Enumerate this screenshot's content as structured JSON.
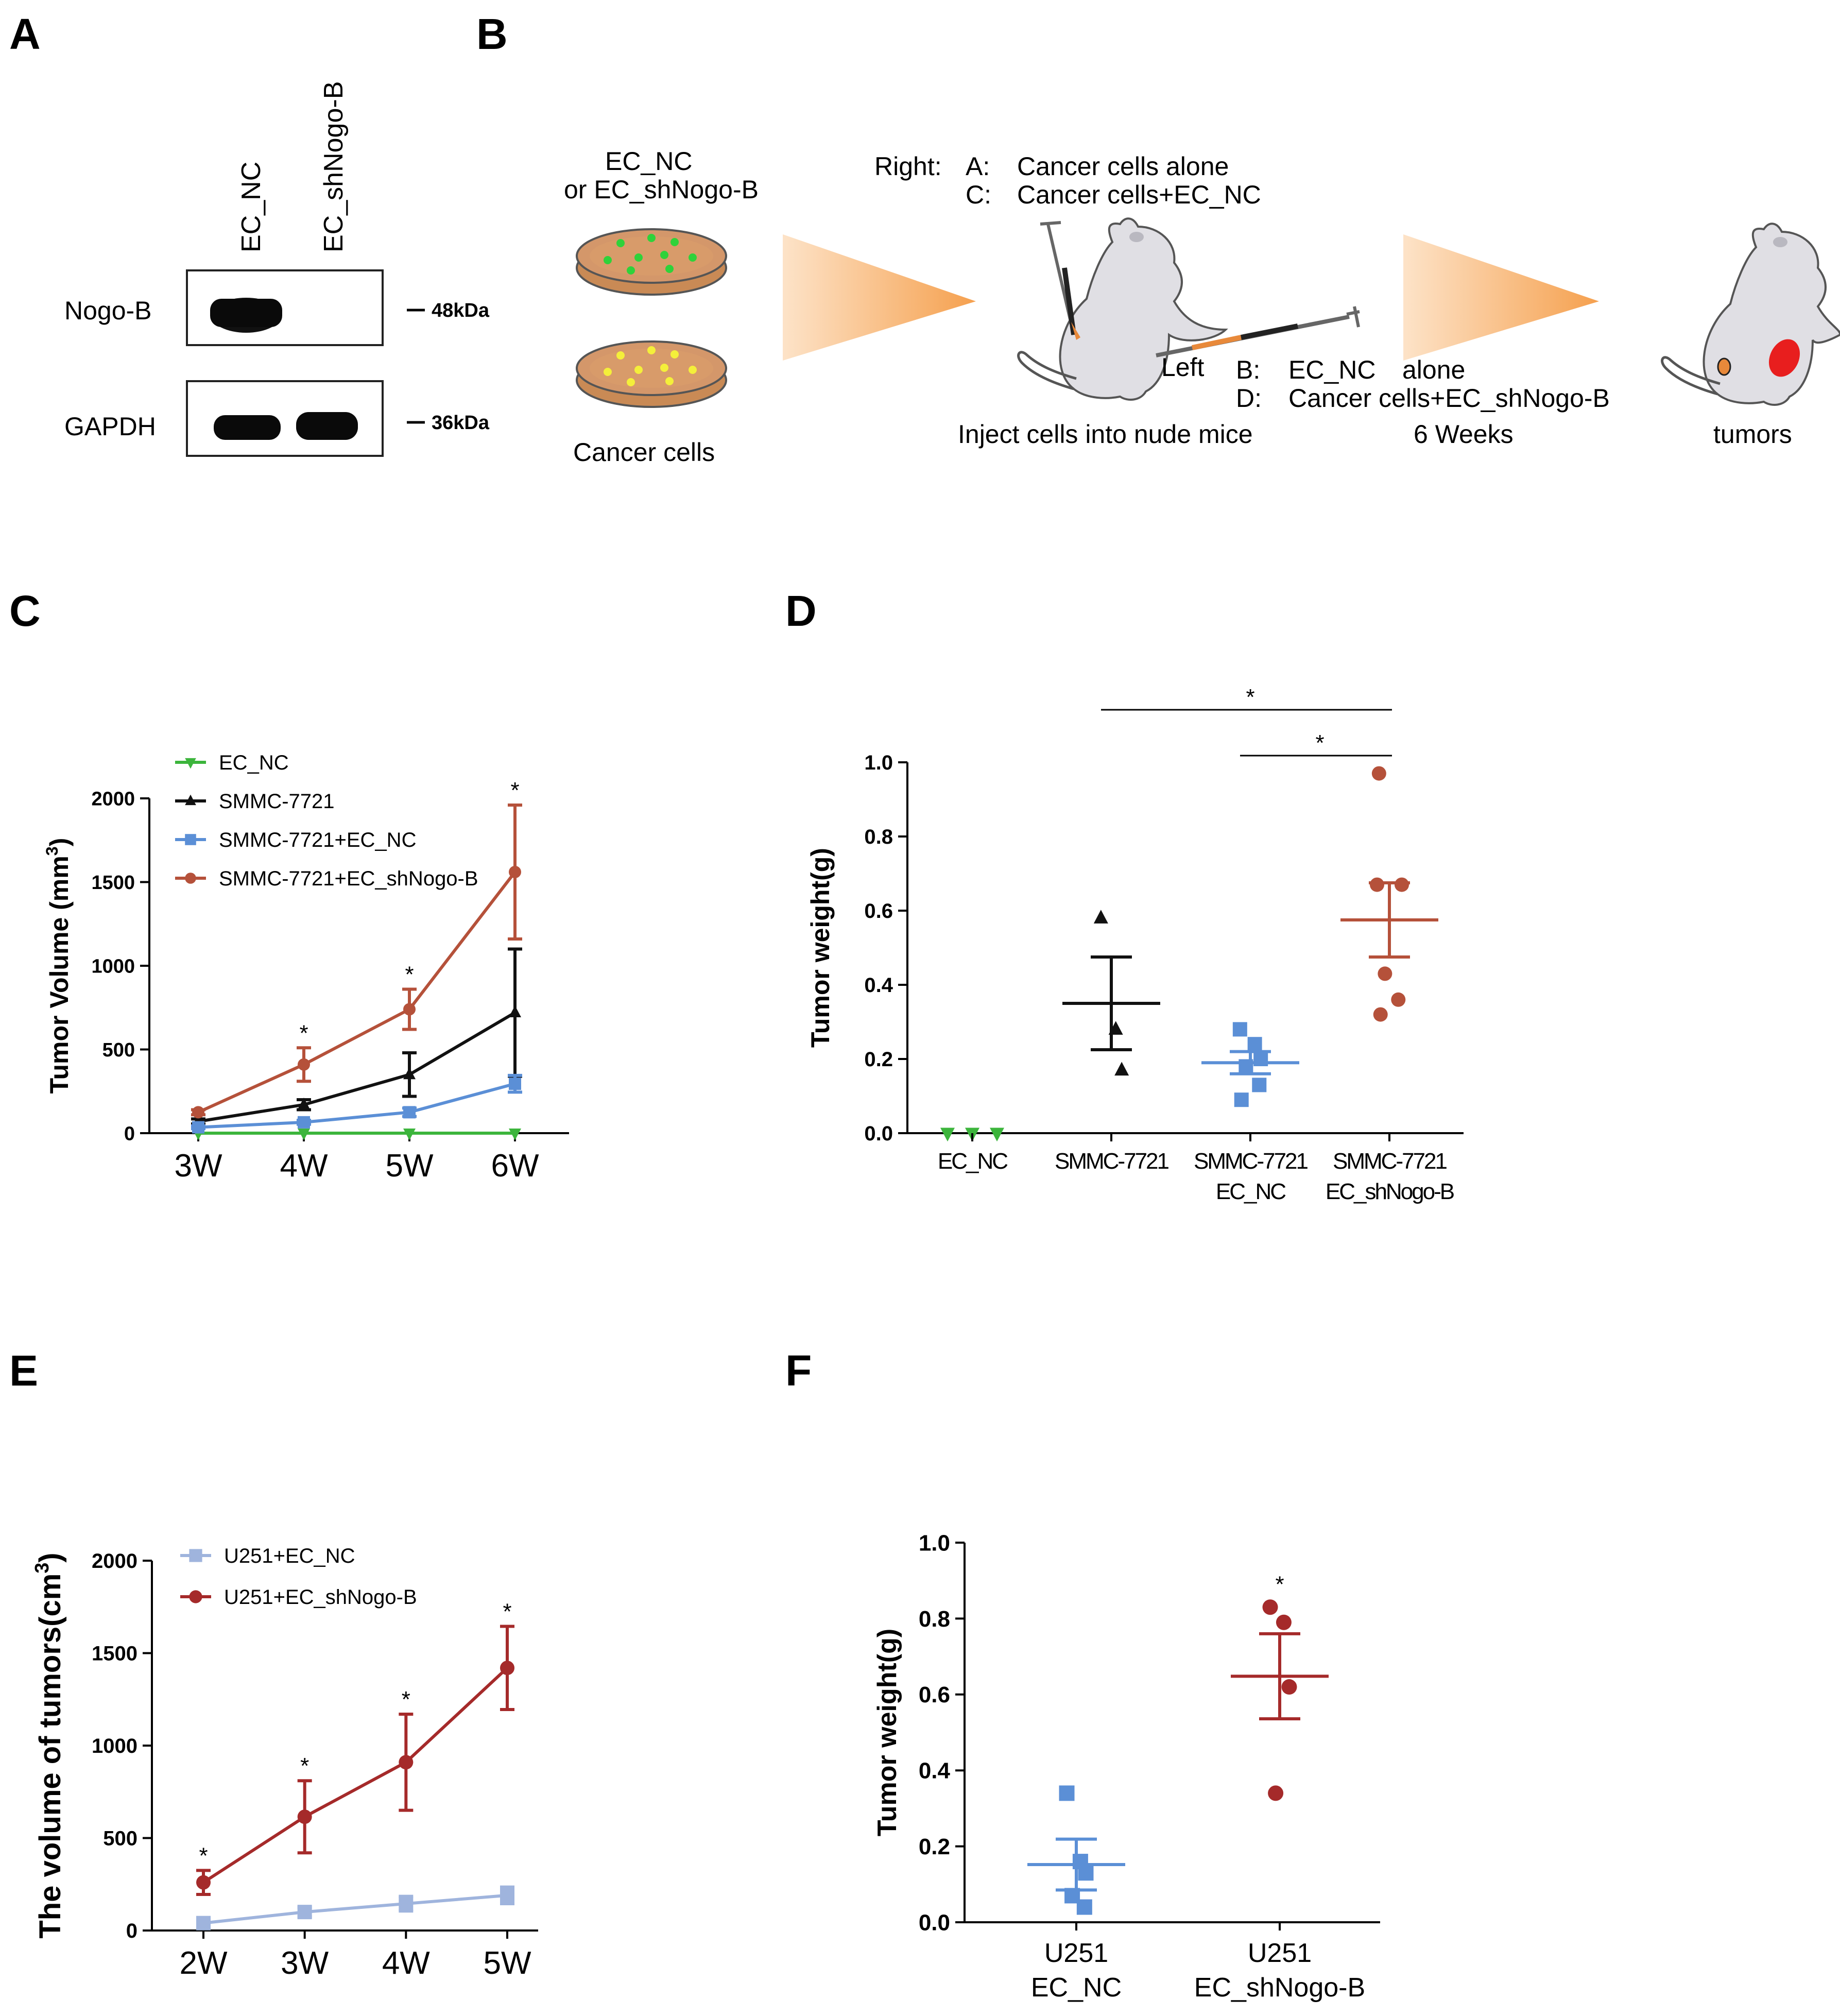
{
  "panels": {
    "A": {
      "letter": "A",
      "lanes": [
        "EC_NC",
        "EC_shNogo-B"
      ],
      "rows": [
        "Nogo-B",
        "GAPDH"
      ],
      "markers": [
        "48kDa",
        "36kDa"
      ]
    },
    "B": {
      "letter": "B",
      "dish_label_line1": "EC_NC",
      "dish_label_line2": "or  EC_shNogo-B",
      "cancer_cells": "Cancer cells",
      "right_label": "Right:",
      "right_a_key": "A:",
      "right_a_text": "Cancer cells  alone",
      "right_c_key": "C:",
      "right_c_text": "Cancer cells+EC_NC",
      "left_label": "Left",
      "left_b_key": "B:",
      "left_b_text1": "EC_NC",
      "left_b_text2": "alone",
      "left_d_key": "D:",
      "left_d_text": "Cancer cells+EC_shNogo-B",
      "step_inject": "Inject cells into nude mice",
      "step_weeks": "6 Weeks",
      "step_tumors": "tumors",
      "colors": {
        "orange": "#e8893a",
        "blue": "#5b8fd6",
        "green": "#3cb53c",
        "brown": "#b5513a"
      }
    },
    "C": {
      "letter": "C"
    },
    "D": {
      "letter": "D"
    },
    "E": {
      "letter": "E"
    },
    "F": {
      "letter": "F"
    }
  },
  "chart_data": [
    {
      "panel": "C",
      "type": "line",
      "ylabel": "Tumor Volume (mm³)",
      "categories": [
        "3W",
        "4W",
        "5W",
        "6W"
      ],
      "yticks": [
        0,
        500,
        1000,
        1500,
        2000
      ],
      "ylim": [
        0,
        2000
      ],
      "legend_position": "top-left",
      "series": [
        {
          "name": "EC_NC",
          "marker": "triangle-down",
          "color": "#3cb53c",
          "values": [
            0,
            0,
            0,
            0
          ],
          "err": [
            0,
            0,
            0,
            0
          ]
        },
        {
          "name": "SMMC-7721",
          "marker": "triangle-up",
          "color": "#111111",
          "values": [
            70,
            170,
            350,
            720
          ],
          "err": [
            15,
            30,
            130,
            380
          ]
        },
        {
          "name": "SMMC-7721+EC_NC",
          "marker": "square",
          "color": "#5b8fd6",
          "values": [
            35,
            65,
            125,
            295
          ],
          "err": [
            8,
            12,
            25,
            50
          ]
        },
        {
          "name": "SMMC-7721+EC_shNogo-B",
          "marker": "circle",
          "color": "#b5513a",
          "values": [
            125,
            410,
            740,
            1560
          ],
          "err": [
            15,
            100,
            120,
            400
          ]
        }
      ],
      "annotations": [
        {
          "x": "4W",
          "text": "*"
        },
        {
          "x": "5W",
          "text": "*"
        },
        {
          "x": "6W",
          "text": "*"
        }
      ]
    },
    {
      "panel": "D",
      "type": "scatter",
      "ylabel": "Tumor weight(g)",
      "ylim": [
        0,
        1.0
      ],
      "yticks": [
        "0.0",
        "0.2",
        "0.4",
        "0.6",
        "0.8",
        "1.0"
      ],
      "groups": [
        {
          "label1": "EC_NC",
          "label2": "",
          "color": "#3cb53c",
          "marker": "triangle-down",
          "points": [
            0.0,
            0.0,
            0.0
          ],
          "mean": null,
          "sem": null
        },
        {
          "label1": "SMMC-7721",
          "label2": "",
          "color": "#111111",
          "marker": "triangle-up",
          "points": [
            0.58,
            0.28,
            0.17
          ],
          "mean": 0.35,
          "sem": 0.125
        },
        {
          "label1": "SMMC-7721",
          "label2": "EC_NC",
          "color": "#5b8fd6",
          "marker": "square",
          "points": [
            0.28,
            0.24,
            0.2,
            0.18,
            0.13,
            0.09
          ],
          "mean": 0.19,
          "sem": 0.03
        },
        {
          "label1": "SMMC-7721",
          "label2": "EC_shNogo-B",
          "color": "#b5513a",
          "marker": "circle",
          "points": [
            0.97,
            0.67,
            0.67,
            0.43,
            0.36,
            0.32
          ],
          "mean": 0.575,
          "sem": 0.1
        }
      ],
      "significance": [
        {
          "from": 1,
          "to": 3,
          "text": "*"
        },
        {
          "from": 2,
          "to": 3,
          "text": "*"
        }
      ]
    },
    {
      "panel": "E",
      "type": "line",
      "ylabel": "The volume of tumors(cm³)",
      "categories": [
        "2W",
        "3W",
        "4W",
        "5W"
      ],
      "yticks": [
        0,
        500,
        1000,
        1500,
        2000
      ],
      "ylim": [
        0,
        2000
      ],
      "legend_position": "top-left",
      "series": [
        {
          "name": "U251+EC_NC",
          "marker": "square",
          "color": "#9fb4dd",
          "values": [
            40,
            100,
            145,
            190
          ],
          "err": [
            10,
            25,
            40,
            45
          ]
        },
        {
          "name": "U251+EC_shNogo-B",
          "marker": "circle",
          "color": "#a52a2a",
          "values": [
            260,
            615,
            910,
            1420
          ],
          "err": [
            65,
            195,
            260,
            225
          ]
        }
      ],
      "annotations": [
        {
          "x": "2W",
          "text": "*"
        },
        {
          "x": "3W",
          "text": "*"
        },
        {
          "x": "4W",
          "text": "*"
        },
        {
          "x": "5W",
          "text": "*"
        }
      ]
    },
    {
      "panel": "F",
      "type": "scatter",
      "ylabel": "Tumor weight(g)",
      "ylim": [
        0,
        1.0
      ],
      "yticks": [
        "0.0",
        "0.2",
        "0.4",
        "0.6",
        "0.8",
        "1.0"
      ],
      "groups": [
        {
          "label1": "U251",
          "label2": "EC_NC",
          "color": "#5b8fd6",
          "marker": "square",
          "points": [
            0.34,
            0.16,
            0.13,
            0.07,
            0.04
          ],
          "mean": 0.152,
          "sem": 0.067
        },
        {
          "label1": "U251",
          "label2": "EC_shNogo-B",
          "color": "#a52a2a",
          "marker": "circle",
          "points": [
            0.83,
            0.79,
            0.62,
            0.34
          ],
          "mean": 0.648,
          "sem": 0.112
        }
      ],
      "significance": [
        {
          "group": 1,
          "text": "*"
        }
      ]
    }
  ]
}
